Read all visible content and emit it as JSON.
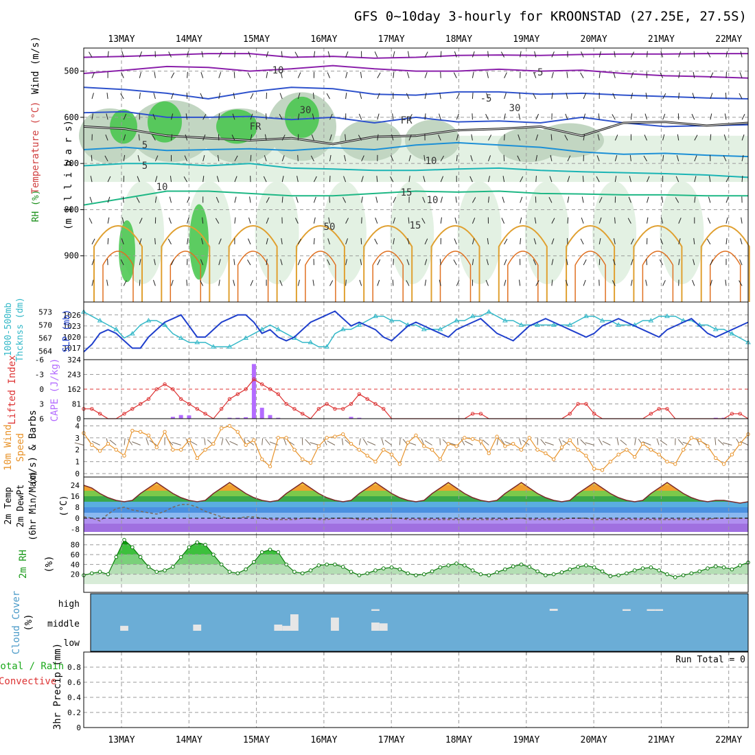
{
  "title": "GFS 0~10day 3-hourly for KROONSTAD (27.25E, 27.5S)",
  "dates": [
    "13MAY",
    "14MAY",
    "15MAY",
    "16MAY",
    "17MAY",
    "18MAY",
    "19MAY",
    "20MAY",
    "21MAY",
    "22MAY"
  ],
  "colors": {
    "grid": "#9a9a9a",
    "rh_light": "#e3f1e3",
    "rh_mid": "#c2d6c2",
    "rh_dark": "#9eb79e",
    "rh_green": "#44c64a",
    "slp": "#1f3fcc",
    "thickness": "#33b8c8",
    "lifted": "#dd3333",
    "cape": "#b36bff",
    "wind10": "#e8932a",
    "cloud_bg": "#6badd6",
    "cloud": "#e6e6e6"
  },
  "panel_labels": {
    "upper": {
      "rh": "RH (%)",
      "temp": "Temperature (°C)",
      "wind": "Wind (m/s)",
      "pressure": "(m i l l i b a r s)"
    },
    "slp": {
      "left1": "1000-500mb",
      "left2": "Thcknss (dm)",
      "right": "SLP (mb)"
    },
    "cape": {
      "left": "Lifted Index",
      "right": "CAPE (J/kg)"
    },
    "wind10": {
      "l1": "10m Wind",
      "l2": "Speed",
      "l3": "(m/s) & Barbs"
    },
    "temp2m": {
      "l1": "2m Temp",
      "l2": "2m DewPt",
      "l3": "(6hr Min/Max)",
      "l4": "(°C)"
    },
    "rh2m": {
      "l1": "2m RH",
      "l2": "(%)"
    },
    "cloud": {
      "l1": "Cloud Cover",
      "l2": "(%)",
      "high": "high",
      "middle": "middle",
      "low": "low"
    },
    "precip": {
      "l1": "Total / Rain",
      "l2": "Convective",
      "l3": "3hr Precip (mm)",
      "run_total": "Run Total = 0"
    }
  },
  "chart_data": [
    {
      "type": "line",
      "name": "upper air cross-section",
      "ylabel": "millibars",
      "y_ticks": [
        500,
        600,
        700,
        800,
        900
      ],
      "ylim": [
        1000,
        450
      ],
      "contour_labels": [
        "10",
        "-5",
        "-5",
        "FR",
        "FR",
        "5",
        "5",
        "10",
        "10",
        "15",
        "15",
        "50",
        "30",
        "30",
        "10"
      ],
      "temperature_isolines": [
        {
          "label": "-10",
          "color": "#8a1faa",
          "p": [
            470,
            468,
            465,
            462,
            462,
            470,
            468,
            472,
            470,
            466,
            465,
            466,
            464,
            463,
            463,
            462,
            462
          ]
        },
        {
          "label": "-10",
          "color": "#8a1faa",
          "p": [
            505,
            498,
            490,
            492,
            500,
            495,
            488,
            495,
            500,
            500,
            496,
            500,
            498,
            505,
            510,
            512,
            515
          ]
        },
        {
          "label": "-5",
          "color": "#2e52cc",
          "p": [
            535,
            540,
            548,
            560,
            545,
            535,
            538,
            550,
            552,
            545,
            545,
            550,
            548,
            552,
            555,
            558,
            560
          ]
        },
        {
          "label": "-5",
          "color": "#2e52cc",
          "p": [
            590,
            588,
            600,
            600,
            598,
            605,
            600,
            612,
            600,
            610,
            608,
            612,
            600,
            612,
            620,
            618,
            616
          ]
        },
        {
          "label": "FR",
          "color": "#111111",
          "p": [
            620,
            625,
            640,
            645,
            650,
            645,
            658,
            642,
            640,
            628,
            625,
            620,
            640,
            612,
            610,
            618,
            612
          ]
        },
        {
          "label": "5",
          "color": "#1b8fd6",
          "p": [
            670,
            665,
            672,
            670,
            668,
            672,
            666,
            670,
            660,
            655,
            660,
            665,
            675,
            680,
            678,
            682,
            685
          ]
        },
        {
          "label": "10",
          "color": "#1ab4b4",
          "p": [
            705,
            700,
            700,
            705,
            700,
            710,
            712,
            715,
            715,
            712,
            710,
            715,
            718,
            720,
            722,
            725,
            730
          ]
        },
        {
          "label": "15",
          "color": "#1db784",
          "p": [
            790,
            775,
            760,
            760,
            765,
            770,
            770,
            765,
            760,
            762,
            760,
            765,
            766,
            768,
            768,
            770,
            770
          ]
        }
      ]
    },
    {
      "type": "line",
      "name": "SLP and thickness",
      "ylabel_left": "1000-500mb Thcknss (dm)",
      "ylabel_right": "SLP (mb)",
      "y_ticks_left": [
        564,
        567,
        570,
        573
      ],
      "y_ticks_right": [
        1017,
        1020,
        1023,
        1026
      ],
      "series": [
        {
          "name": "SLP (mb)",
          "values": [
            1016,
            1018,
            1021,
            1022,
            1021,
            1019,
            1017,
            1017,
            1020,
            1022,
            1024,
            1025,
            1026,
            1023,
            1020,
            1020,
            1022,
            1024,
            1025,
            1026,
            1026,
            1024,
            1021,
            1022,
            1020,
            1019,
            1020,
            1022,
            1024,
            1025,
            1026,
            1027,
            1025,
            1023,
            1024,
            1023,
            1022,
            1020,
            1019,
            1021,
            1023,
            1024,
            1023,
            1022,
            1021,
            1020,
            1022,
            1023,
            1024,
            1025,
            1023,
            1021,
            1020,
            1019,
            1021,
            1023,
            1024,
            1025,
            1024,
            1023,
            1022,
            1021,
            1020,
            1021,
            1023,
            1024,
            1025,
            1024,
            1023,
            1022,
            1021,
            1020,
            1022,
            1023,
            1024,
            1025,
            1023,
            1021,
            1020,
            1021,
            1022,
            1023,
            1024
          ]
        },
        {
          "name": "Thickness (dm)",
          "values": [
            573,
            572,
            571,
            570,
            569,
            567,
            568,
            570,
            571,
            571,
            570,
            568,
            567,
            566,
            566,
            566,
            565,
            565,
            565,
            566,
            567,
            568,
            569,
            570,
            569,
            568,
            567,
            566,
            566,
            565,
            565,
            568,
            569,
            569,
            570,
            571,
            572,
            572,
            571,
            571,
            570,
            570,
            569,
            569,
            569,
            570,
            571,
            571,
            572,
            572,
            573,
            572,
            571,
            571,
            570,
            570,
            570,
            570,
            570,
            570,
            570,
            571,
            572,
            572,
            571,
            571,
            570,
            570,
            570,
            571,
            571,
            572,
            572,
            572,
            571,
            571,
            570,
            570,
            569,
            569,
            568,
            567,
            566
          ]
        }
      ]
    },
    {
      "type": "bar",
      "name": "Lifted index and CAPE",
      "ylabel_left": "Lifted Index",
      "ylabel_right": "CAPE (J/kg)",
      "li_ticks": [
        "-6",
        "-3",
        "0",
        "3",
        "6"
      ],
      "cape_ticks": [
        "324",
        "243",
        "162",
        "81",
        "0"
      ],
      "cape_values": [
        0,
        0,
        0,
        0,
        0,
        0,
        0,
        0,
        0,
        0,
        0,
        10,
        20,
        18,
        0,
        0,
        0,
        0,
        5,
        5,
        8,
        300,
        60,
        20,
        5,
        0,
        0,
        0,
        0,
        0,
        0,
        0,
        0,
        10,
        5,
        0,
        0,
        0,
        0,
        0,
        0,
        0,
        0,
        0,
        0,
        0,
        0,
        0,
        0,
        0,
        0,
        0,
        0,
        0,
        0,
        0,
        0,
        0,
        0,
        0,
        0,
        0,
        0,
        0,
        0,
        0,
        0,
        0,
        0,
        0,
        0,
        0,
        0,
        0,
        0,
        0,
        0,
        0,
        5,
        5,
        0,
        0,
        0
      ],
      "lifted_index_values": [
        4,
        4,
        5,
        6,
        6,
        5,
        4,
        3,
        2,
        0,
        -1,
        0,
        2,
        3,
        4,
        5,
        6,
        4,
        2,
        1,
        0,
        -2,
        -1,
        0,
        1,
        3,
        4,
        5,
        6,
        4,
        3,
        4,
        4,
        3,
        1,
        2,
        3,
        4,
        6,
        6,
        6,
        6,
        6,
        6,
        6,
        6,
        6,
        6,
        5,
        5,
        6,
        6,
        6,
        6,
        6,
        6,
        6,
        6,
        6,
        6,
        5,
        3,
        3,
        5,
        6,
        6,
        6,
        6,
        6,
        6,
        5,
        4,
        4,
        6,
        6,
        6,
        6,
        6,
        6,
        6,
        5,
        5,
        6
      ]
    },
    {
      "type": "line",
      "name": "10m wind speed",
      "ylabel": "10m Wind Speed (m/s) & Barbs",
      "y_ticks": [
        0,
        1,
        2,
        3,
        4
      ],
      "values": [
        3.4,
        2.4,
        1.9,
        2.5,
        2,
        1.5,
        3.6,
        3.5,
        3.2,
        2.2,
        3.5,
        2.0,
        2.0,
        2.8,
        1.3,
        2.0,
        2.5,
        3.8,
        4.0,
        3.5,
        2.4,
        2.8,
        1.2,
        0.6,
        3.0,
        3.0,
        2.0,
        1.2,
        0.9,
        2.3,
        3.0,
        3.1,
        3.3,
        2.5,
        2.0,
        1.5,
        1.0,
        2.0,
        1.6,
        0.8,
        2.6,
        3.2,
        2.3,
        2.0,
        1.2,
        2.5,
        2.3,
        3.0,
        2.9,
        2.7,
        1.7,
        3.1,
        2.3,
        2.5,
        2.0,
        3.0,
        2.0,
        1.7,
        1.2,
        2.2,
        2.8,
        2.0,
        1.5,
        0.4,
        0.3,
        1.0,
        1.6,
        2.0,
        1.4,
        2.5,
        2.0,
        1.6,
        1.0,
        0.8,
        2.0,
        3.0,
        2.8,
        2.3,
        1.3,
        0.8,
        1.6,
        2.5,
        3.3
      ]
    },
    {
      "type": "area",
      "name": "2m temperature and dew point",
      "ylabel": "2m Temp 2m DewPt (6hr Min/Max) (°C)",
      "y_ticks": [
        -8,
        0,
        8,
        16,
        24
      ],
      "series": [
        {
          "name": "2m Temp",
          "values": [
            24,
            22,
            18,
            15,
            13,
            12,
            13,
            18,
            22,
            26,
            22,
            18,
            15,
            13,
            12,
            13,
            18,
            22,
            26,
            22,
            18,
            15,
            13,
            12,
            13,
            18,
            22,
            26,
            22,
            18,
            15,
            13,
            12,
            13,
            18,
            22,
            26,
            22,
            18,
            15,
            13,
            12,
            13,
            18,
            22,
            26,
            22,
            18,
            15,
            13,
            12,
            13,
            18,
            22,
            26,
            22,
            18,
            15,
            13,
            12,
            13,
            18,
            22,
            26,
            22,
            18,
            15,
            13,
            12,
            13,
            18,
            22,
            26,
            22,
            18,
            15,
            13,
            12,
            13,
            13,
            12,
            11,
            12
          ]
        },
        {
          "name": "2m DewPt",
          "values": [
            1,
            0,
            -2,
            3,
            7,
            8,
            6,
            5,
            4,
            3,
            5,
            8,
            10,
            10,
            8,
            5,
            3,
            1,
            0,
            0,
            1,
            1,
            0,
            -1,
            -1,
            -1,
            -1,
            0,
            0,
            -1,
            -1,
            0,
            0,
            0,
            -1,
            -1,
            -1,
            0,
            0,
            0,
            -1,
            -1,
            -1,
            -1,
            -1,
            -1,
            -1,
            -1,
            -1,
            -1,
            -1,
            -1,
            -1,
            0,
            0,
            -1,
            -1,
            -1,
            -1,
            -1,
            0,
            0,
            0,
            -1,
            -1,
            -1,
            -1,
            -1,
            -1,
            -1,
            -1,
            -1,
            -1,
            -1,
            -1,
            -1,
            -1,
            -1,
            0,
            0,
            0,
            0,
            0
          ]
        }
      ]
    },
    {
      "type": "area",
      "name": "2m relative humidity",
      "ylabel": "2m RH (%)",
      "y_ticks": [
        20,
        40,
        60,
        80
      ],
      "ylim": [
        0,
        100
      ],
      "values": [
        18,
        22,
        25,
        20,
        55,
        90,
        75,
        55,
        35,
        25,
        28,
        35,
        55,
        75,
        85,
        80,
        60,
        40,
        25,
        22,
        30,
        45,
        65,
        70,
        65,
        40,
        25,
        22,
        28,
        38,
        40,
        40,
        35,
        25,
        18,
        22,
        28,
        32,
        34,
        30,
        22,
        18,
        20,
        26,
        34,
        38,
        42,
        38,
        28,
        20,
        18,
        24,
        30,
        36,
        40,
        35,
        26,
        18,
        20,
        24,
        30,
        35,
        38,
        34,
        26,
        16,
        18,
        22,
        28,
        32,
        34,
        28,
        20,
        14,
        18,
        22,
        26,
        32,
        36,
        34,
        30,
        38,
        44
      ]
    },
    {
      "type": "bar",
      "name": "cloud cover",
      "ylabel": "Cloud Cover (%)",
      "y_ticks": [
        "high",
        "middle",
        "low"
      ],
      "mid_cloud_percent": [
        0,
        0,
        0,
        0,
        0,
        12,
        0,
        0,
        0,
        0,
        0,
        0,
        0,
        0,
        15,
        0,
        0,
        0,
        0,
        0,
        0,
        0,
        0,
        0,
        15,
        12,
        40,
        0,
        0,
        0,
        0,
        32,
        0,
        0,
        0,
        0,
        20,
        18,
        0,
        0,
        0,
        0,
        0,
        0,
        0,
        0,
        0,
        0,
        0,
        0,
        0,
        0,
        0,
        0,
        0,
        0,
        0,
        0,
        0,
        0,
        0,
        0,
        0,
        0,
        0,
        0,
        0,
        0,
        0,
        0,
        0,
        0,
        0,
        0,
        0,
        0,
        0,
        0,
        0,
        0,
        0,
        0,
        0
      ],
      "high_cloud_percent": [
        0,
        0,
        0,
        0,
        0,
        0,
        0,
        0,
        0,
        0,
        0,
        0,
        0,
        0,
        0,
        0,
        0,
        0,
        0,
        0,
        0,
        0,
        0,
        0,
        0,
        0,
        0,
        0,
        0,
        0,
        0,
        0,
        0,
        0,
        0,
        0,
        8,
        0,
        0,
        0,
        0,
        0,
        0,
        0,
        0,
        0,
        0,
        0,
        0,
        0,
        0,
        0,
        0,
        0,
        0,
        0,
        0,
        0,
        10,
        0,
        0,
        0,
        0,
        0,
        0,
        0,
        0,
        8,
        0,
        0,
        8,
        8,
        0,
        0,
        0,
        0,
        0,
        0,
        0,
        0,
        0,
        0,
        0
      ]
    },
    {
      "type": "bar",
      "name": "3hr precipitation",
      "ylabel": "3hr Precip (mm)",
      "y_ticks": [
        "0",
        "0.2",
        "0.4",
        "0.6",
        "0.8"
      ],
      "ylim": [
        0,
        1
      ],
      "values": [
        0,
        0,
        0,
        0,
        0,
        0,
        0,
        0,
        0,
        0,
        0,
        0,
        0,
        0,
        0,
        0,
        0,
        0,
        0,
        0,
        0,
        0,
        0,
        0,
        0,
        0,
        0,
        0,
        0,
        0,
        0,
        0,
        0,
        0,
        0,
        0,
        0,
        0,
        0,
        0,
        0,
        0,
        0,
        0,
        0,
        0,
        0,
        0,
        0,
        0,
        0,
        0,
        0,
        0,
        0,
        0,
        0,
        0,
        0,
        0,
        0,
        0,
        0,
        0,
        0,
        0,
        0,
        0,
        0,
        0,
        0,
        0,
        0,
        0,
        0,
        0,
        0,
        0,
        0,
        0,
        0,
        0,
        0
      ],
      "run_total": "Run Total = 0"
    }
  ]
}
